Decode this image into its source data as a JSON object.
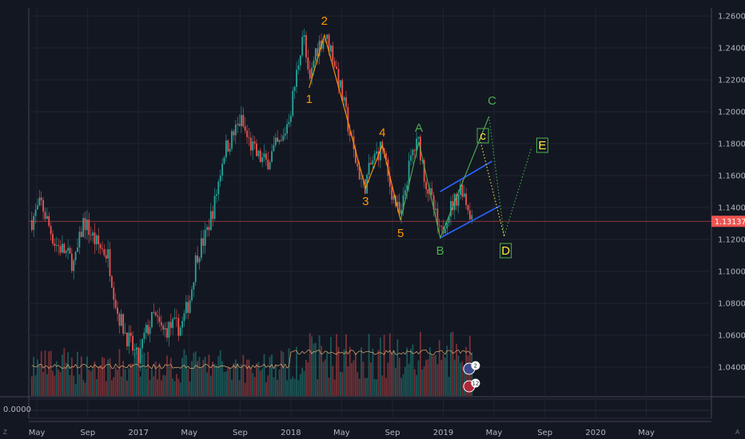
{
  "chart_data": {
    "type": "candlestick",
    "price_ticks": [
      "1.26000",
      "1.24000",
      "1.22000",
      "1.20000",
      "1.18000",
      "1.16000",
      "1.14000",
      "1.12000",
      "1.10000",
      "1.08000",
      "1.06000",
      "1.04000"
    ],
    "price_values": [
      1.26,
      1.24,
      1.22,
      1.2,
      1.18,
      1.16,
      1.14,
      1.12,
      1.1,
      1.08,
      1.06,
      1.04
    ],
    "ylim": [
      1.022,
      1.265
    ],
    "time_ticks": [
      "May",
      "Sep",
      "2017",
      "May",
      "Sep",
      "2018",
      "May",
      "Sep",
      "2019",
      "May",
      "Sep",
      "2020",
      "May"
    ],
    "time_values": [
      2016.333,
      2016.667,
      2017.0,
      2017.333,
      2017.667,
      2018.0,
      2018.333,
      2018.667,
      2019.0,
      2019.333,
      2019.667,
      2020.0,
      2020.333
    ],
    "xlim": [
      2016.28,
      2020.76
    ],
    "current_price": "1.13137",
    "current_price_value": 1.13137,
    "indicator_value": "0.0000",
    "price_path": [
      [
        2016.3,
        1.132
      ],
      [
        2016.36,
        1.143
      ],
      [
        2016.45,
        1.118
      ],
      [
        2016.52,
        1.112
      ],
      [
        2016.58,
        1.104
      ],
      [
        2016.64,
        1.132
      ],
      [
        2016.72,
        1.118
      ],
      [
        2016.8,
        1.11
      ],
      [
        2016.86,
        1.075
      ],
      [
        2016.92,
        1.06
      ],
      [
        2016.96,
        1.052
      ],
      [
        2017.0,
        1.044
      ],
      [
        2017.04,
        1.06
      ],
      [
        2017.1,
        1.072
      ],
      [
        2017.16,
        1.062
      ],
      [
        2017.22,
        1.066
      ],
      [
        2017.28,
        1.065
      ],
      [
        2017.34,
        1.084
      ],
      [
        2017.38,
        1.11
      ],
      [
        2017.44,
        1.122
      ],
      [
        2017.5,
        1.143
      ],
      [
        2017.56,
        1.175
      ],
      [
        2017.62,
        1.185
      ],
      [
        2017.67,
        1.195
      ],
      [
        2017.72,
        1.182
      ],
      [
        2017.78,
        1.172
      ],
      [
        2017.84,
        1.168
      ],
      [
        2017.9,
        1.178
      ],
      [
        2017.94,
        1.18
      ],
      [
        2018.0,
        1.202
      ],
      [
        2018.04,
        1.225
      ],
      [
        2018.08,
        1.252
      ],
      [
        2018.12,
        1.215
      ],
      [
        2018.16,
        1.238
      ],
      [
        2018.22,
        1.248
      ],
      [
        2018.27,
        1.238
      ],
      [
        2018.31,
        1.221
      ],
      [
        2018.36,
        1.199
      ],
      [
        2018.42,
        1.171
      ],
      [
        2018.48,
        1.152
      ],
      [
        2018.53,
        1.168
      ],
      [
        2018.6,
        1.179
      ],
      [
        2018.64,
        1.157
      ],
      [
        2018.68,
        1.145
      ],
      [
        2018.72,
        1.132
      ],
      [
        2018.76,
        1.158
      ],
      [
        2018.8,
        1.175
      ],
      [
        2018.84,
        1.181
      ],
      [
        2018.88,
        1.158
      ],
      [
        2018.94,
        1.138
      ],
      [
        2018.98,
        1.121
      ],
      [
        2019.02,
        1.135
      ],
      [
        2019.08,
        1.145
      ],
      [
        2019.12,
        1.154
      ],
      [
        2019.16,
        1.141
      ],
      [
        2019.2,
        1.131
      ]
    ],
    "waves": [
      {
        "name": "impulse",
        "color": "#ff9800",
        "style": "solid",
        "points": [
          [
            2018.12,
            1.215
          ],
          [
            2018.22,
            1.248
          ],
          [
            2018.36,
            1.199
          ],
          [
            2018.49,
            1.152
          ],
          [
            2018.6,
            1.179
          ],
          [
            2018.72,
            1.132
          ]
        ]
      },
      {
        "name": "corrective",
        "color": "#4caf50",
        "style": "solid",
        "points": [
          [
            2018.72,
            1.132
          ],
          [
            2018.84,
            1.181
          ],
          [
            2018.98,
            1.121
          ],
          [
            2019.3,
            1.197
          ]
        ]
      },
      {
        "name": "projection-c",
        "color": "#4caf50",
        "style": "dotted",
        "points": [
          [
            2019.3,
            1.197
          ],
          [
            2019.4,
            1.122
          ],
          [
            2019.58,
            1.178
          ]
        ]
      },
      {
        "name": "projection-c-minor",
        "color": "#ffeb3b",
        "style": "dotted",
        "points": [
          [
            2019.24,
            1.183
          ],
          [
            2019.4,
            1.122
          ]
        ]
      }
    ],
    "channels": [
      {
        "color": "#2962ff",
        "points": [
          [
            2018.98,
            1.15
          ],
          [
            2019.32,
            1.169
          ]
        ]
      },
      {
        "color": "#2962ff",
        "points": [
          [
            2018.98,
            1.121
          ],
          [
            2019.37,
            1.141
          ]
        ]
      }
    ],
    "wave_labels": [
      {
        "text": "1",
        "x": 2018.12,
        "y": 1.207,
        "color": "#ff9800",
        "boxed": false
      },
      {
        "text": "2",
        "x": 2018.22,
        "y": 1.256,
        "color": "#ff9800",
        "boxed": false
      },
      {
        "text": "3",
        "x": 2018.49,
        "y": 1.143,
        "color": "#ff9800",
        "boxed": false
      },
      {
        "text": "4",
        "x": 2018.6,
        "y": 1.186,
        "color": "#ff9800",
        "boxed": false
      },
      {
        "text": "5",
        "x": 2018.72,
        "y": 1.123,
        "color": "#ff9800",
        "boxed": false
      },
      {
        "text": "A",
        "x": 2018.84,
        "y": 1.189,
        "color": "#4caf50",
        "boxed": false
      },
      {
        "text": "B",
        "x": 2018.98,
        "y": 1.112,
        "color": "#4caf50",
        "boxed": false
      },
      {
        "text": "C",
        "x": 2019.32,
        "y": 1.206,
        "color": "#4caf50",
        "boxed": false
      },
      {
        "text": "c",
        "x": 2019.26,
        "y": 1.184,
        "color": "#ffeb3b",
        "boxed": true
      },
      {
        "text": "D",
        "x": 2019.41,
        "y": 1.112,
        "color": "#ffeb3b",
        "boxed": true
      },
      {
        "text": "E",
        "x": 2019.65,
        "y": 1.178,
        "color": "#ffeb3b",
        "boxed": true
      }
    ],
    "event_badges": [
      {
        "text": "2",
        "color": "#3a4a8a"
      },
      {
        "text": "12",
        "color": "#b0283a"
      }
    ]
  },
  "status_bar": {
    "left_label": "Z",
    "right_label": "A"
  }
}
